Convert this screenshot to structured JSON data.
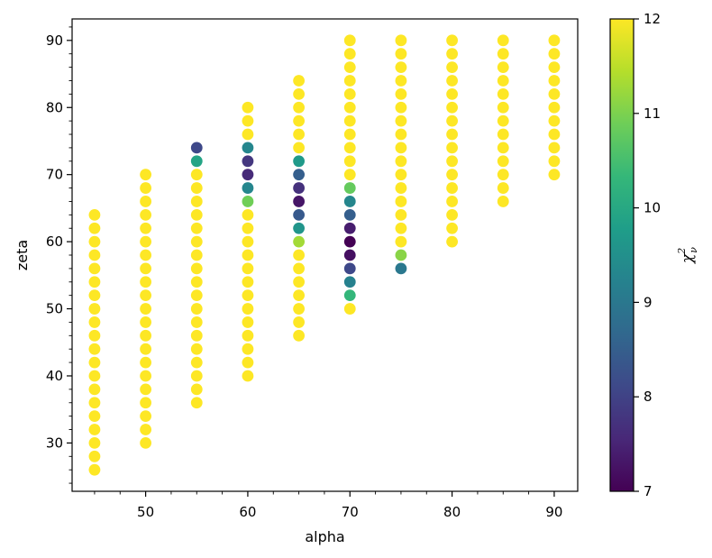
{
  "chart_data": {
    "type": "scatter",
    "xlabel": "alpha",
    "ylabel": "zeta",
    "xlim": [
      42.8,
      92.3
    ],
    "ylim": [
      22.8,
      93.2
    ],
    "xticks": [
      50,
      60,
      70,
      80,
      90
    ],
    "yticks": [
      30,
      40,
      50,
      60,
      70,
      80,
      90
    ],
    "xtick_labels": [
      "50",
      "60",
      "70",
      "80",
      "90"
    ],
    "ytick_labels": [
      "30",
      "40",
      "50",
      "60",
      "70",
      "80",
      "90"
    ],
    "minor_ticks": true,
    "grid": false,
    "colormap": "viridis",
    "colorbar": {
      "label": "χ²ν",
      "label_main": "χ",
      "label_sup": "2",
      "label_sub": "ν",
      "range": [
        7,
        12
      ],
      "ticks": [
        7,
        8,
        9,
        10,
        11,
        12
      ],
      "tick_labels": [
        "7",
        "8",
        "9",
        "10",
        "11",
        "12"
      ],
      "gradient_colors": [
        "#440154",
        "#482878",
        "#3e4989",
        "#31688e",
        "#26828e",
        "#1f9e89",
        "#35b779",
        "#6ece58",
        "#b5de2b",
        "#fde725"
      ]
    },
    "columns": [
      {
        "alpha": 45,
        "zeta_min": 26,
        "zeta_max": 64,
        "step": 2
      },
      {
        "alpha": 50,
        "zeta_min": 30,
        "zeta_max": 70,
        "step": 2
      },
      {
        "alpha": 55,
        "zeta_min": 36,
        "zeta_max": 74,
        "step": 2
      },
      {
        "alpha": 60,
        "zeta_min": 40,
        "zeta_max": 80,
        "step": 2
      },
      {
        "alpha": 65,
        "zeta_min": 46,
        "zeta_max": 84,
        "step": 2
      },
      {
        "alpha": 70,
        "zeta_min": 50,
        "zeta_max": 90,
        "step": 2
      },
      {
        "alpha": 75,
        "zeta_min": 56,
        "zeta_max": 90,
        "step": 2
      },
      {
        "alpha": 80,
        "zeta_min": 60,
        "zeta_max": 90,
        "step": 2
      },
      {
        "alpha": 85,
        "zeta_min": 66,
        "zeta_max": 90,
        "step": 2
      },
      {
        "alpha": 90,
        "zeta_min": 70,
        "zeta_max": 90,
        "step": 2
      }
    ],
    "default_chi2": 12,
    "chi2_overrides": [
      {
        "alpha": 55,
        "zeta": 74,
        "chi2": 8.1
      },
      {
        "alpha": 55,
        "zeta": 72,
        "chi2": 9.9
      },
      {
        "alpha": 60,
        "zeta": 74,
        "chi2": 9.3
      },
      {
        "alpha": 60,
        "zeta": 72,
        "chi2": 7.8
      },
      {
        "alpha": 60,
        "zeta": 70,
        "chi2": 7.6
      },
      {
        "alpha": 60,
        "zeta": 68,
        "chi2": 9.3
      },
      {
        "alpha": 60,
        "zeta": 66,
        "chi2": 10.9
      },
      {
        "alpha": 65,
        "zeta": 72,
        "chi2": 9.7
      },
      {
        "alpha": 65,
        "zeta": 70,
        "chi2": 8.5
      },
      {
        "alpha": 65,
        "zeta": 68,
        "chi2": 7.7
      },
      {
        "alpha": 65,
        "zeta": 66,
        "chi2": 7.3
      },
      {
        "alpha": 65,
        "zeta": 64,
        "chi2": 8.4
      },
      {
        "alpha": 65,
        "zeta": 62,
        "chi2": 9.6
      },
      {
        "alpha": 65,
        "zeta": 60,
        "chi2": 11.3
      },
      {
        "alpha": 70,
        "zeta": 68,
        "chi2": 10.8
      },
      {
        "alpha": 70,
        "zeta": 66,
        "chi2": 9.3
      },
      {
        "alpha": 70,
        "zeta": 64,
        "chi2": 8.5
      },
      {
        "alpha": 70,
        "zeta": 62,
        "chi2": 7.4
      },
      {
        "alpha": 70,
        "zeta": 60,
        "chi2": 7.0
      },
      {
        "alpha": 70,
        "zeta": 58,
        "chi2": 7.2
      },
      {
        "alpha": 70,
        "zeta": 56,
        "chi2": 8.1
      },
      {
        "alpha": 70,
        "zeta": 54,
        "chi2": 9.2
      },
      {
        "alpha": 70,
        "zeta": 52,
        "chi2": 10.3
      },
      {
        "alpha": 75,
        "zeta": 58,
        "chi2": 11.1
      },
      {
        "alpha": 75,
        "zeta": 56,
        "chi2": 9.0
      }
    ]
  }
}
